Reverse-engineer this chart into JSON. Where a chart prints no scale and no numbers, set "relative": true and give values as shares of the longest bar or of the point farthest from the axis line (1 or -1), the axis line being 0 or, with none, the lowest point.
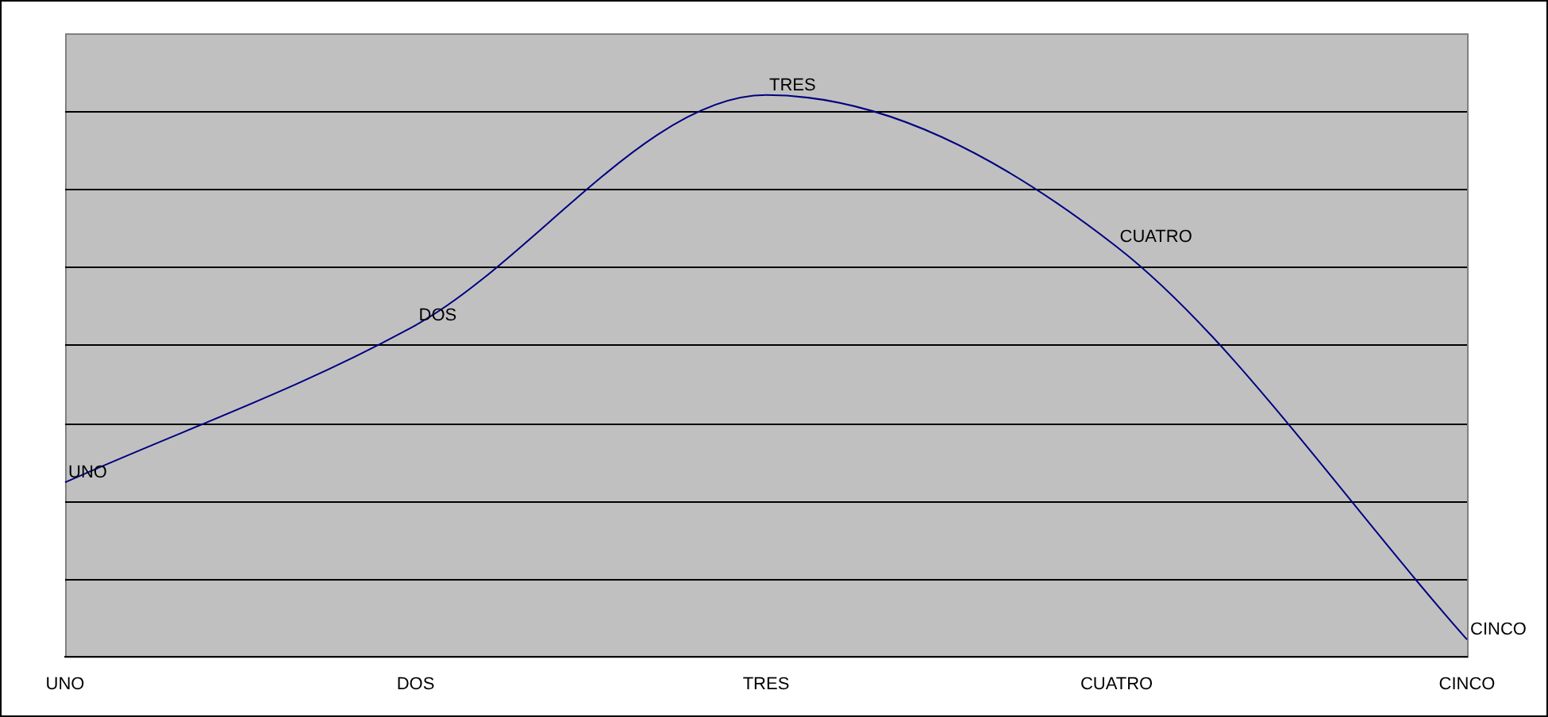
{
  "chart_data": {
    "type": "line",
    "relative": true,
    "categories": [
      "UNO",
      "DOS",
      "TRES",
      "CUATRO",
      "CINCO"
    ],
    "series": [
      {
        "color": "#000080",
        "values": [
          0.31,
          0.59,
          1,
          0.73,
          0.03
        ]
      }
    ],
    "annotations": [
      {
        "text": "UNO",
        "x": "UNO",
        "y": 0.31
      },
      {
        "text": "DOS",
        "x": "DOS",
        "y": 0.59
      },
      {
        "text": "TRES",
        "x": "TRES",
        "y": 1
      },
      {
        "text": "CUATRO",
        "x": "CUATRO",
        "y": 0.73
      },
      {
        "text": "CINCO",
        "x": "CINCO",
        "y": 0.03
      }
    ],
    "grid": true,
    "legend": false,
    "marker": "none",
    "line_style": "solid"
  }
}
